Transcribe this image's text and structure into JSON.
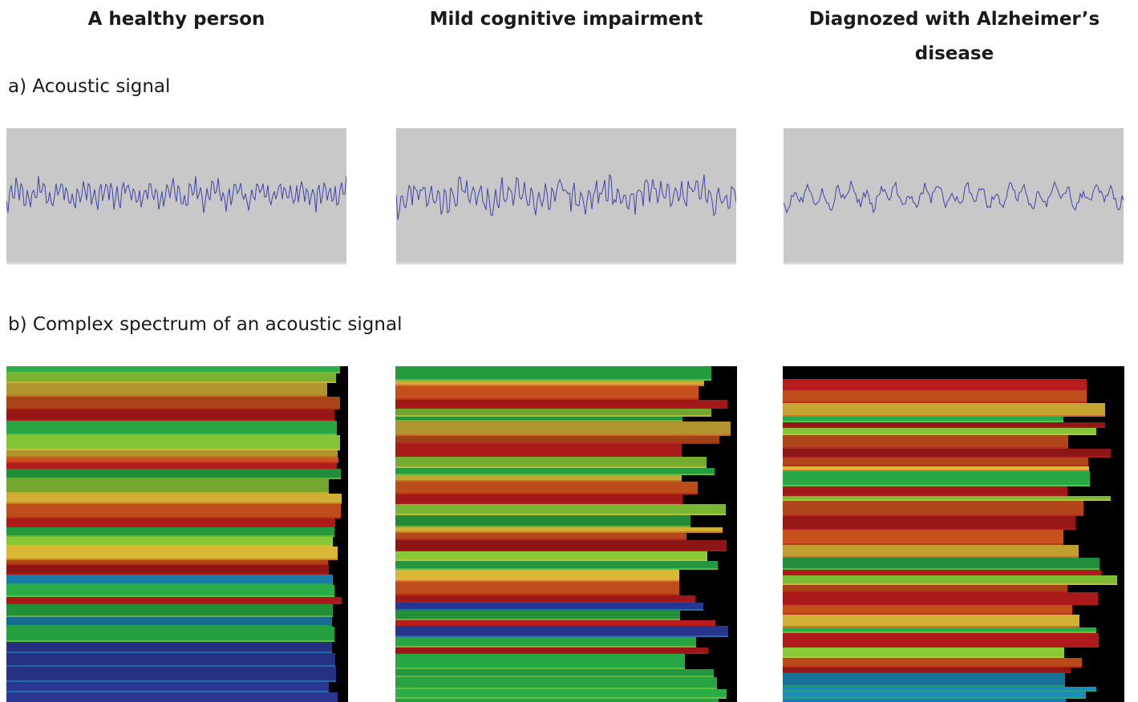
{
  "columns": [
    {
      "title": "A healthy person"
    },
    {
      "title": "Mild cognitive impairment"
    },
    {
      "title": "Diagnozed with Alzheimer’s disease"
    }
  ],
  "sections": {
    "a_label": "a) Acoustic signal",
    "b_label": "b) Complex spectrum of an acoustic signal"
  },
  "colors": {
    "waveform": "#3d44a8",
    "waveform_background": "#c8c8c8",
    "spectrum_background": "#000000",
    "spectrum_palette": [
      "#2f3fa6",
      "#1e8fc0",
      "#2bb54a",
      "#8ccf3a",
      "#e8c23a",
      "#d2541e",
      "#b81c1c"
    ]
  }
}
